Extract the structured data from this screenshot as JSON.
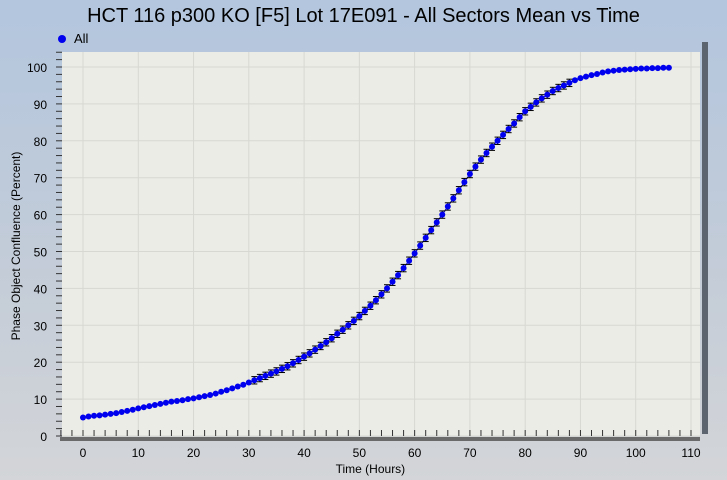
{
  "chart_data": {
    "type": "scatter",
    "title": "HCT 116 p300 KO [F5] Lot 17E091 - All Sectors Mean vs Time",
    "xlabel": "Time (Hours)",
    "ylabel": "Phase Object Confluence (Percent)",
    "xlim": [
      -5,
      112
    ],
    "ylim": [
      0,
      104
    ],
    "xticks": [
      0,
      10,
      20,
      30,
      40,
      50,
      60,
      70,
      80,
      90,
      100,
      110
    ],
    "yticks": [
      0,
      10,
      20,
      30,
      40,
      50,
      60,
      70,
      80,
      90,
      100
    ],
    "grid": true,
    "legend": {
      "position": "top-left",
      "entries": [
        "All"
      ]
    },
    "series": [
      {
        "name": "All",
        "color": "#0000ee",
        "x_start": 0,
        "x_step": 1,
        "error_halfwidth": 1.0,
        "values": [
          5.0,
          5.3,
          5.5,
          5.6,
          5.8,
          6.0,
          6.2,
          6.5,
          6.8,
          7.1,
          7.5,
          7.8,
          8.1,
          8.4,
          8.7,
          9.0,
          9.3,
          9.5,
          9.7,
          10.0,
          10.2,
          10.5,
          10.8,
          11.1,
          11.5,
          12.0,
          12.4,
          12.9,
          13.4,
          13.9,
          14.5,
          15.1,
          15.7,
          16.3,
          16.9,
          17.5,
          18.2,
          18.9,
          19.7,
          20.6,
          21.5,
          22.4,
          23.4,
          24.4,
          25.4,
          26.5,
          27.7,
          28.8,
          30.0,
          31.2,
          32.5,
          33.9,
          35.3,
          36.8,
          38.4,
          40.0,
          41.8,
          43.6,
          45.5,
          47.5,
          49.5,
          51.6,
          53.7,
          55.8,
          57.9,
          60.0,
          62.2,
          64.4,
          66.6,
          68.8,
          71.0,
          73.0,
          74.9,
          76.7,
          78.4,
          80.0,
          81.6,
          83.2,
          84.7,
          86.4,
          88.0,
          89.2,
          90.4,
          91.5,
          92.5,
          93.5,
          94.3,
          95.0,
          95.7,
          96.4,
          97.0,
          97.4,
          97.8,
          98.1,
          98.5,
          98.8,
          99.0,
          99.2,
          99.3,
          99.4,
          99.5,
          99.6,
          99.6,
          99.7,
          99.7,
          99.8,
          99.8
        ]
      }
    ]
  }
}
